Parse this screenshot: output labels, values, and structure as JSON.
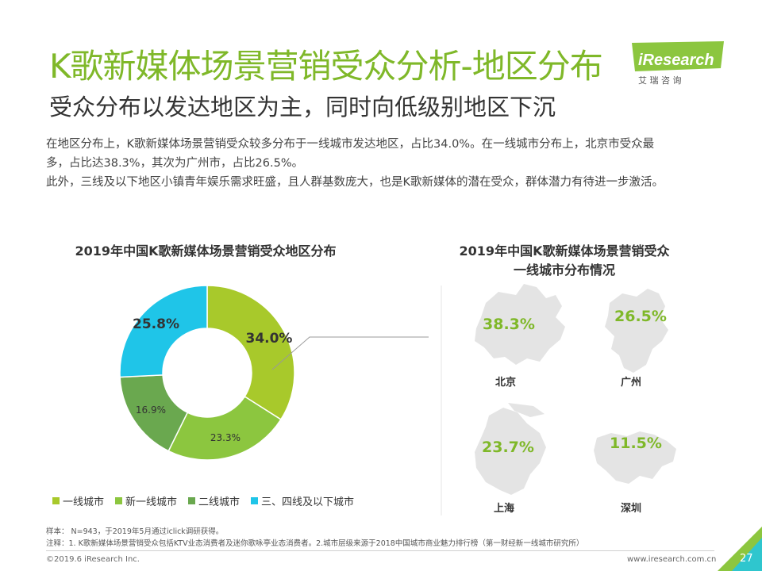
{
  "header": {
    "title": "K歌新媒体场景营销受众分析-地区分布",
    "subtitle": "受众分布以发达地区为主，同时向低级别地区下沉",
    "logo_text": "iResearch",
    "logo_sub": "艾 瑞 咨 询"
  },
  "body": {
    "line1": "在地区分布上，K歌新媒体场景营销受众较多分布于一线城市发达地区，占比34.0%。在一线城市分布上，北京市受众最",
    "line2": "多，占比达38.3%，其次为广州市，占比26.5%。",
    "line3": "此外，三线及以下地区小镇青年娱乐需求旺盛，且人群基数庞大，也是K歌新媒体的潜在受众，群体潜力有待进一步激活。"
  },
  "chart_data": [
    {
      "type": "pie",
      "title": "2019年中国K歌新媒体场景营销受众地区分布",
      "categories": [
        "一线城市",
        "新一线城市",
        "二线城市",
        "三、四线及以下城市"
      ],
      "values": [
        34.0,
        23.3,
        16.9,
        25.8
      ],
      "value_labels": [
        "34.0%",
        "23.3%",
        "16.9%",
        "25.8%"
      ],
      "colors": [
        "#a8c92b",
        "#8cc63f",
        "#6aa84f",
        "#1fc5e8"
      ],
      "donut": true,
      "legend": "bottom"
    },
    {
      "type": "table",
      "title_line1": "2019年中国K歌新媒体场景营销受众",
      "title_line2": "一线城市分布情况",
      "cities": [
        {
          "name": "北京",
          "value": 38.3,
          "label": "38.3%"
        },
        {
          "name": "广州",
          "value": 26.5,
          "label": "26.5%"
        },
        {
          "name": "上海",
          "value": 23.7,
          "label": "23.7%"
        },
        {
          "name": "深圳",
          "value": 11.5,
          "label": "11.5%"
        }
      ]
    }
  ],
  "notes": {
    "sample": "样本：  N=943，于2019年5月通过iclick调研获得。",
    "remark": "注释：1. K歌新媒体场景营销受众包括KTV业态消费者及迷你歌咏亭业态消费者。2.城市层级来源于2018中国城市商业魅力排行榜（第一财经新一线城市研究所）"
  },
  "footer": {
    "copyright": "©2019.6 iResearch Inc.",
    "website": "www.iresearch.com.cn",
    "page": "27"
  },
  "colors": {
    "accent": "#7fb829",
    "map": "#e4e4e4",
    "connector": "#999999"
  }
}
